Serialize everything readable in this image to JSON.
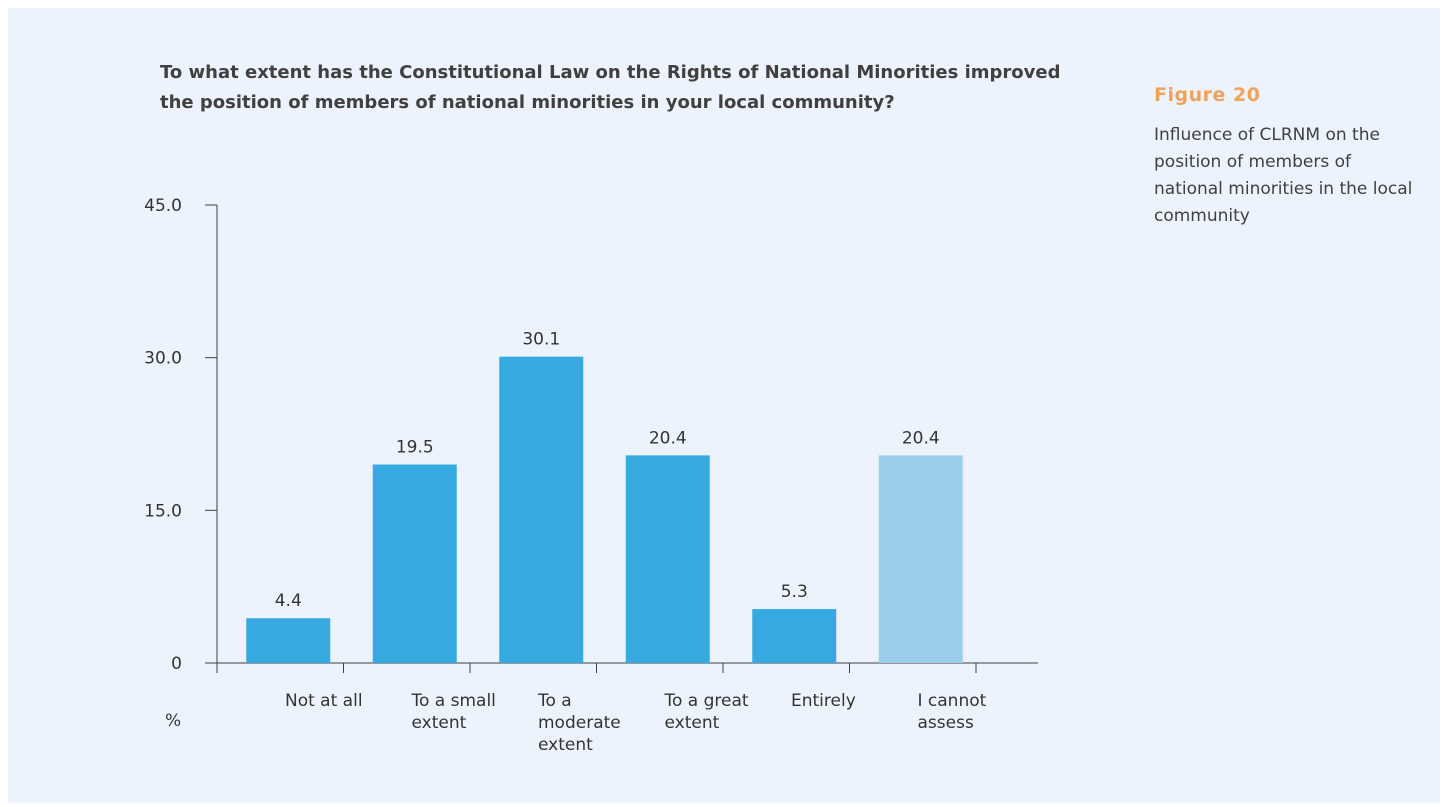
{
  "question": "To what extent has the Constitutional Law on the Rights of National Minorities improved the position of members of national minorities in your local community?",
  "figure": {
    "number": "Figure 20",
    "caption": "Influence of CLRNM on the position of members of national minorities in the local community"
  },
  "chart_data": {
    "type": "bar",
    "title": "To what extent has the Constitutional Law on the Rights of National Minorities improved the position of members of national minorities in your local community?",
    "ylabel": "%",
    "xlabel": "",
    "ylim": [
      0,
      45
    ],
    "yticks": [
      0,
      15,
      30,
      45
    ],
    "ytick_labels": [
      "0",
      "15.0",
      "30.0",
      "45.0"
    ],
    "categories": [
      "Not at all",
      "To a small extent",
      "To a moderate extent",
      "To a great extent",
      "Entirely",
      "I cannot assess"
    ],
    "category_lines": [
      [
        "Not at all"
      ],
      [
        "To a small",
        "extent"
      ],
      [
        "To a",
        "moderate",
        "extent"
      ],
      [
        "To a great",
        "extent"
      ],
      [
        "Entirely"
      ],
      [
        "I cannot",
        "assess"
      ]
    ],
    "values": [
      4.4,
      19.5,
      30.1,
      20.4,
      5.3,
      20.4
    ],
    "value_labels": [
      "4.4",
      "19.5",
      "30.1",
      "20.4",
      "5.3",
      "20.4"
    ],
    "bar_colors": [
      "#36a9e0",
      "#36a9e0",
      "#36a9e0",
      "#36a9e0",
      "#36a9e0",
      "#9dcdec"
    ],
    "grid": false,
    "legend": "none"
  }
}
